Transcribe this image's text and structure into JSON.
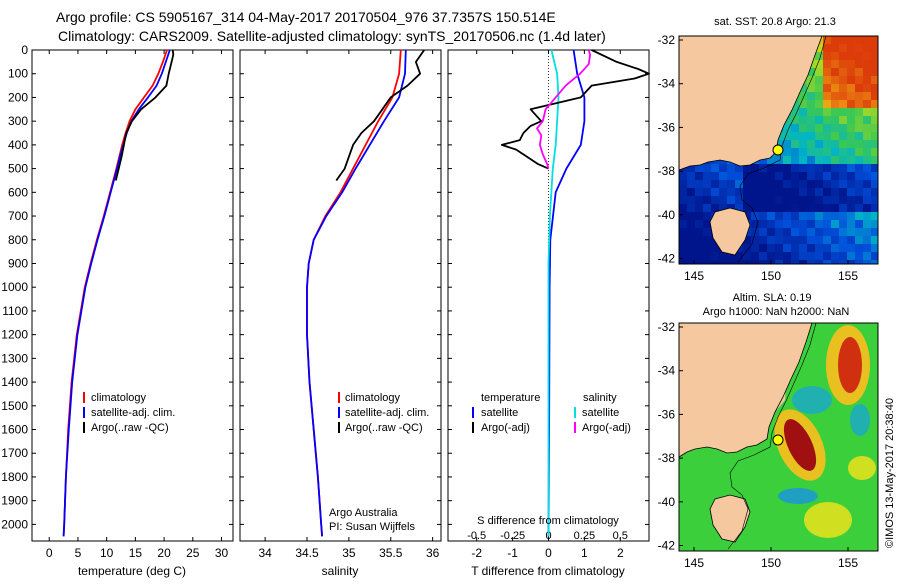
{
  "titles": {
    "line1": "Argo profile: CS 5905167_314 04-May-2017 20170504_976 37.7357S 150.514E",
    "line2": "Climatology: CARS2009. Satellite-adjusted climatology: synTS_20170506.nc (1.4d later)"
  },
  "depth_ticks": [
    "0",
    "100",
    "200",
    "300",
    "400",
    "500",
    "600",
    "700",
    "800",
    "900",
    "1000",
    "1100",
    "1200",
    "1300",
    "1400",
    "1500",
    "1600",
    "1700",
    "1800",
    "1900",
    "2000"
  ],
  "colors": {
    "climatology": "#ff0000",
    "satellite": "#0000ff",
    "argo": "#000000",
    "satellite_salinity": "#00e0e0",
    "argo_salinity_adj": "#ff00ff",
    "land": "#f5c8a0"
  },
  "chart_data": [
    {
      "type": "line",
      "name": "temperature",
      "xlabel": "temperature (deg C)",
      "xticks": [
        "0",
        "5",
        "10",
        "15",
        "20",
        "25",
        "30"
      ],
      "xlim": [
        -3,
        32
      ],
      "ylim": [
        2070,
        0
      ],
      "legend": [
        "climatology",
        "satellite-adj. clim.",
        "Argo(..raw -QC)"
      ],
      "series": [
        {
          "name": "climatology",
          "depth": [
            0,
            50,
            100,
            150,
            200,
            250,
            300,
            350,
            400,
            450,
            500,
            600,
            700,
            800,
            900,
            1000,
            1200,
            1400,
            1600,
            1800,
            2000,
            2050
          ],
          "values": [
            20.5,
            19.8,
            19,
            18,
            16.5,
            15,
            14,
            13.3,
            12.7,
            12.2,
            11.7,
            10.6,
            9.5,
            8.3,
            7.2,
            6.2,
            4.8,
            3.9,
            3.3,
            2.9,
            2.6,
            2.5
          ]
        },
        {
          "name": "satellite-adj. clim.",
          "depth": [
            0,
            50,
            100,
            150,
            200,
            250,
            300,
            350,
            400,
            450,
            500,
            600,
            700,
            800,
            900,
            1000,
            1200,
            1400,
            1600,
            1800,
            2000,
            2050
          ],
          "values": [
            21,
            20.3,
            19.6,
            18.7,
            17.2,
            15.6,
            14.3,
            13.5,
            12.9,
            12.3,
            11.8,
            10.7,
            9.6,
            8.4,
            7.3,
            6.3,
            4.9,
            4,
            3.4,
            2.9,
            2.6,
            2.5
          ]
        },
        {
          "name": "Argo(..raw -QC)",
          "depth": [
            0,
            20,
            50,
            100,
            150,
            200,
            250,
            300,
            350,
            400,
            450,
            500,
            550
          ],
          "values": [
            21.5,
            21.6,
            21.3,
            20.8,
            20.4,
            18.5,
            16,
            14.4,
            13.4,
            13,
            12.6,
            12.1,
            11.6
          ]
        }
      ]
    },
    {
      "type": "line",
      "name": "salinity",
      "xlabel": "salinity",
      "xticks": [
        "34",
        "34.5",
        "35",
        "35.5",
        "36"
      ],
      "xlim": [
        33.7,
        36.1
      ],
      "ylim": [
        2070,
        0
      ],
      "legend": [
        "climatology",
        "satellite-adj. clim.",
        "Argo(..raw -QC)"
      ],
      "annotations": [
        "Argo Australia",
        "PI: Susan Wijffels"
      ],
      "series": [
        {
          "name": "climatology",
          "depth": [
            0,
            100,
            200,
            300,
            400,
            500,
            600,
            700,
            800,
            900,
            1000,
            1200,
            1400,
            1600,
            1800,
            2000,
            2050
          ],
          "values": [
            35.62,
            35.6,
            35.52,
            35.35,
            35.2,
            35.05,
            34.9,
            34.72,
            34.58,
            34.52,
            34.5,
            34.5,
            34.53,
            34.58,
            34.63,
            34.67,
            34.68
          ]
        },
        {
          "name": "satellite-adj. clim.",
          "depth": [
            0,
            100,
            200,
            300,
            400,
            500,
            600,
            700,
            800,
            900,
            1000,
            1200,
            1400,
            1600,
            1800,
            2000,
            2050
          ],
          "values": [
            35.68,
            35.67,
            35.6,
            35.42,
            35.25,
            35.08,
            34.92,
            34.73,
            34.58,
            34.52,
            34.5,
            34.5,
            34.53,
            34.58,
            34.63,
            34.67,
            34.68
          ]
        },
        {
          "name": "Argo(..raw -QC)",
          "depth": [
            0,
            50,
            100,
            150,
            200,
            250,
            300,
            350,
            400,
            450,
            500,
            550
          ],
          "values": [
            35.9,
            35.8,
            35.85,
            35.7,
            35.5,
            35.4,
            35.3,
            35.15,
            35.05,
            35,
            34.95,
            34.85
          ]
        }
      ]
    },
    {
      "type": "line",
      "name": "differences",
      "xlabel": "T difference from climatology",
      "xticks": [
        "-2",
        "-1",
        "0",
        "1",
        "2"
      ],
      "xlim": [
        -2.8,
        2.8
      ],
      "top_label": "S difference from climatology",
      "top_ticks": [
        "-0.5",
        "-0.25",
        "0",
        "0.25",
        "0.5"
      ],
      "top_lim": [
        -0.7,
        0.7
      ],
      "ylim": [
        2070,
        0
      ],
      "legend_temperature": {
        "title": "temperature",
        "items": [
          "satellite",
          "Argo(-adj)"
        ]
      },
      "legend_salinity": {
        "title": "salinity",
        "items": [
          "satellite",
          "Argo(-adj)"
        ]
      },
      "series": [
        {
          "name": "temperature satellite",
          "depth": [
            0,
            100,
            200,
            300,
            400,
            500,
            600,
            800,
            1000,
            1500,
            2050
          ],
          "values": [
            0.7,
            0.8,
            1.0,
            1.0,
            0.9,
            0.5,
            0.2,
            0.05,
            0.03,
            0.02,
            0
          ]
        },
        {
          "name": "salinity satellite",
          "depth": [
            0,
            100,
            200,
            300,
            400,
            500,
            700,
            900,
            1200,
            1600,
            2050
          ],
          "values": [
            0.02,
            0.06,
            0.07,
            0.06,
            0.05,
            0.03,
            0.01,
            0,
            0,
            0,
            0
          ]
        },
        {
          "name": "temperature Argo(-adj)",
          "depth": [
            0,
            50,
            80,
            100,
            120,
            150,
            200,
            250,
            300,
            320,
            350,
            380,
            400,
            420,
            450,
            480,
            500
          ],
          "values": [
            1.2,
            1.9,
            2.5,
            2.8,
            2.4,
            1.2,
            0.9,
            -0.5,
            -0.2,
            -0.5,
            -0.7,
            -0.8,
            -1.3,
            -0.9,
            -0.6,
            -0.3,
            0
          ]
        },
        {
          "name": "salinity Argo(-adj)",
          "depth": [
            0,
            20,
            60,
            100,
            150,
            200,
            250,
            300,
            330,
            360,
            400,
            440,
            480,
            500
          ],
          "values": [
            0.28,
            0.29,
            0.28,
            0.22,
            0.12,
            0.05,
            -0.02,
            -0.04,
            -0.08,
            -0.05,
            -0.06,
            -0.04,
            -0.01,
            0
          ]
        }
      ]
    }
  ],
  "maps": {
    "top_title": "sat. SST: 20.8 Argo: 21.3",
    "bottom_title1": "Altim. SLA: 0.19",
    "bottom_title2": "Argo h1000: NaN h2000: NaN",
    "lat_ticks": [
      "-32",
      "-34",
      "-36",
      "-38",
      "-40",
      "-42"
    ],
    "lon_ticks": [
      "145",
      "150",
      "155"
    ]
  },
  "credit": "©IMOS 13-May-2017 20:38:40"
}
